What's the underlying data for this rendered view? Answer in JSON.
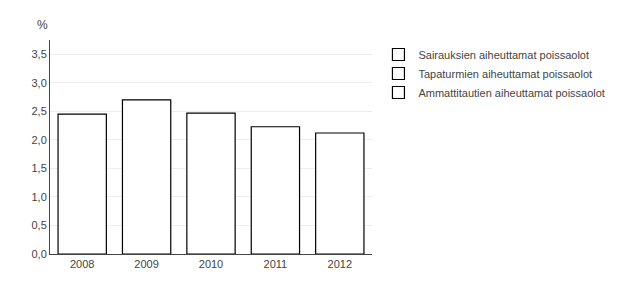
{
  "chart_data": {
    "type": "bar",
    "ylabel": "%",
    "categories": [
      "2008",
      "2009",
      "2010",
      "2011",
      "2012"
    ],
    "series": [
      {
        "name": "Sairauksien aiheuttamat poissaolot",
        "color": "#ffffff",
        "values": [
          2.45,
          2.7,
          2.47,
          2.23,
          2.12
        ]
      },
      {
        "name": "Tapaturmien aiheuttamat poissaolot",
        "color": "#ffffff",
        "values": [
          null,
          null,
          null,
          null,
          null
        ]
      },
      {
        "name": "Ammattitautien aiheuttamat poissaolot",
        "color": "#ffffff",
        "values": [
          null,
          null,
          null,
          null,
          null
        ]
      }
    ],
    "ylim": [
      0.0,
      3.75
    ],
    "yticks": [
      {
        "value": 0.0,
        "label": "0,0"
      },
      {
        "value": 0.5,
        "label": "0,5"
      },
      {
        "value": 1.0,
        "label": "1,0"
      },
      {
        "value": 1.5,
        "label": "1,5"
      },
      {
        "value": 2.0,
        "label": "2,0"
      },
      {
        "value": 2.5,
        "label": "2,5"
      },
      {
        "value": 3.0,
        "label": "3,0"
      },
      {
        "value": 3.5,
        "label": "3,5"
      }
    ],
    "grid": true
  }
}
